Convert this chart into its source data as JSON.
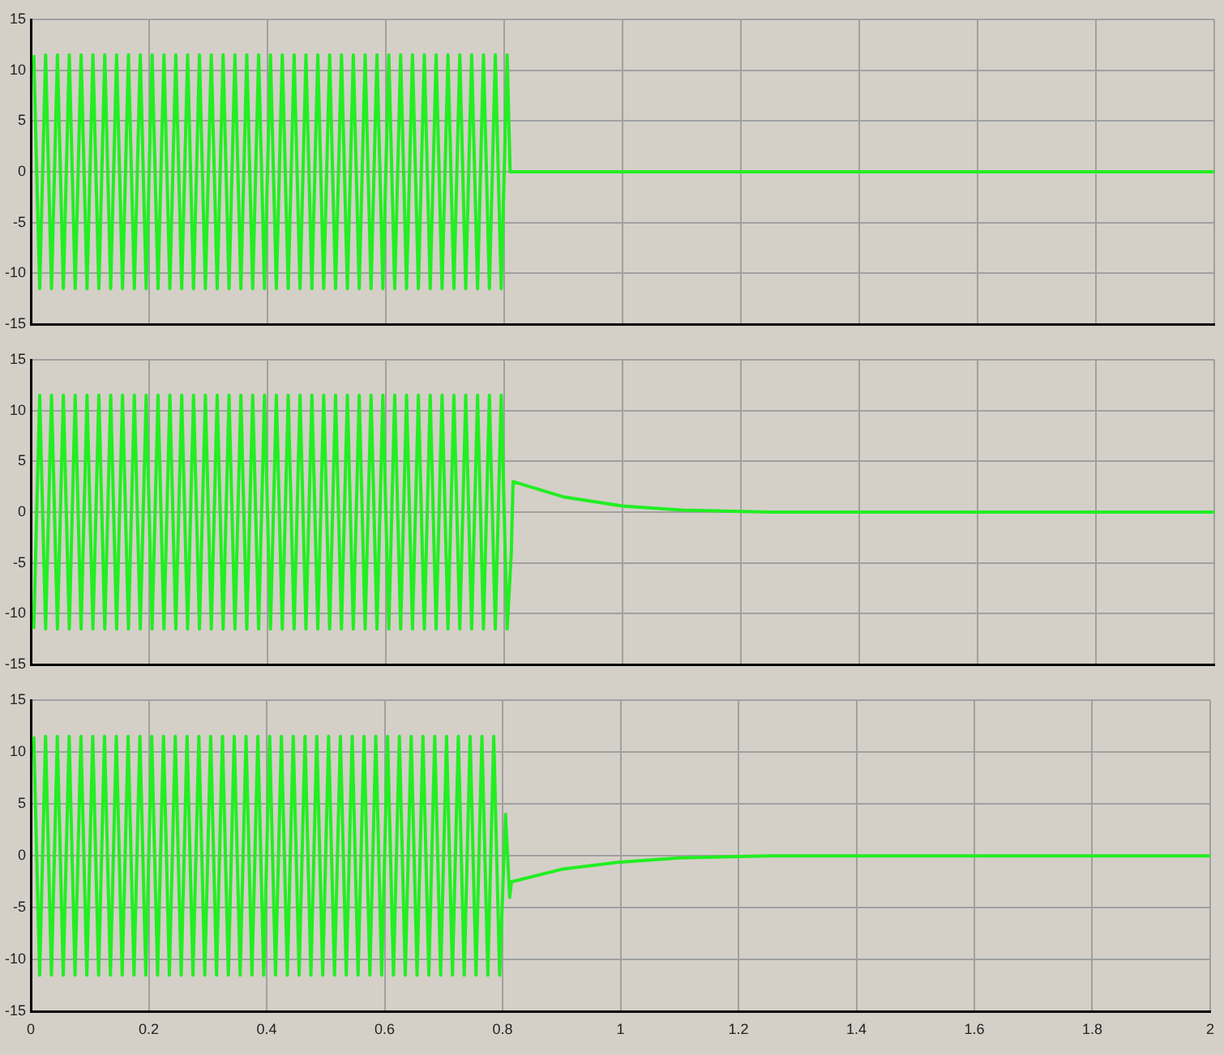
{
  "chart_data": [
    {
      "type": "line",
      "color": "#22ee22",
      "xlim": [
        0,
        2
      ],
      "xticks": [
        0,
        0.2,
        0.4,
        0.6,
        0.8,
        1,
        1.2,
        1.4,
        1.6,
        1.8,
        2
      ],
      "ylim": [
        -15,
        15
      ],
      "yticks": [
        -15,
        -10,
        -5,
        0,
        5,
        10,
        15
      ],
      "grid": true,
      "tick_labels": "y",
      "x": [
        0.005,
        0.015,
        0.025,
        0.035,
        0.045,
        0.055,
        0.065,
        0.075,
        0.085,
        0.095,
        0.105,
        0.115,
        0.125,
        0.135,
        0.145,
        0.155,
        0.165,
        0.175,
        0.185,
        0.195,
        0.205,
        0.215,
        0.225,
        0.235,
        0.245,
        0.255,
        0.265,
        0.275,
        0.285,
        0.295,
        0.305,
        0.315,
        0.325,
        0.335,
        0.345,
        0.355,
        0.365,
        0.375,
        0.385,
        0.395,
        0.405,
        0.415,
        0.425,
        0.435,
        0.445,
        0.455,
        0.465,
        0.475,
        0.485,
        0.495,
        0.505,
        0.515,
        0.525,
        0.535,
        0.545,
        0.555,
        0.565,
        0.575,
        0.585,
        0.595,
        0.605,
        0.615,
        0.625,
        0.635,
        0.645,
        0.655,
        0.665,
        0.675,
        0.685,
        0.695,
        0.705,
        0.715,
        0.725,
        0.735,
        0.745,
        0.755,
        0.765,
        0.775,
        0.785,
        0.795,
        0.805,
        0.81,
        2
      ],
      "values": [
        11.5,
        -11.5,
        11.5,
        -11.5,
        11.5,
        -11.5,
        11.5,
        -11.5,
        11.5,
        -11.5,
        11.5,
        -11.5,
        11.5,
        -11.5,
        11.5,
        -11.5,
        11.5,
        -11.5,
        11.5,
        -11.5,
        11.5,
        -11.5,
        11.5,
        -11.5,
        11.5,
        -11.5,
        11.5,
        -11.5,
        11.5,
        -11.5,
        11.5,
        -11.5,
        11.5,
        -11.5,
        11.5,
        -11.5,
        11.5,
        -11.5,
        11.5,
        -11.5,
        11.5,
        -11.5,
        11.5,
        -11.5,
        11.5,
        -11.5,
        11.5,
        -11.5,
        11.5,
        -11.5,
        11.5,
        -11.5,
        11.5,
        -11.5,
        11.5,
        -11.5,
        11.5,
        -11.5,
        11.5,
        -11.5,
        11.5,
        -11.5,
        11.5,
        -11.5,
        11.5,
        -11.5,
        11.5,
        -11.5,
        11.5,
        -11.5,
        11.5,
        -11.5,
        11.5,
        -11.5,
        11.5,
        -11.5,
        11.5,
        -11.5,
        11.5,
        -11.5,
        11.5,
        0,
        0
      ]
    },
    {
      "type": "line",
      "color": "#22ee22",
      "xlim": [
        0,
        2
      ],
      "xticks": [
        0,
        0.2,
        0.4,
        0.6,
        0.8,
        1,
        1.2,
        1.4,
        1.6,
        1.8,
        2
      ],
      "ylim": [
        -15,
        15
      ],
      "yticks": [
        -15,
        -10,
        -5,
        0,
        5,
        10,
        15
      ],
      "grid": true,
      "tick_labels": "y",
      "x": [
        0.005,
        0.015,
        0.025,
        0.035,
        0.045,
        0.055,
        0.065,
        0.075,
        0.085,
        0.095,
        0.105,
        0.115,
        0.125,
        0.135,
        0.145,
        0.155,
        0.165,
        0.175,
        0.185,
        0.195,
        0.205,
        0.215,
        0.225,
        0.235,
        0.245,
        0.255,
        0.265,
        0.275,
        0.285,
        0.295,
        0.305,
        0.315,
        0.325,
        0.335,
        0.345,
        0.355,
        0.365,
        0.375,
        0.385,
        0.395,
        0.405,
        0.415,
        0.425,
        0.435,
        0.445,
        0.455,
        0.465,
        0.475,
        0.485,
        0.495,
        0.505,
        0.515,
        0.525,
        0.535,
        0.545,
        0.555,
        0.565,
        0.575,
        0.585,
        0.595,
        0.605,
        0.615,
        0.625,
        0.635,
        0.645,
        0.655,
        0.665,
        0.675,
        0.685,
        0.695,
        0.705,
        0.715,
        0.725,
        0.735,
        0.745,
        0.755,
        0.765,
        0.775,
        0.785,
        0.795,
        0.805,
        0.812,
        0.815,
        0.9,
        1,
        1.1,
        1.25,
        2
      ],
      "values": [
        -11.5,
        11.5,
        -11.5,
        11.5,
        -11.5,
        11.5,
        -11.5,
        11.5,
        -11.5,
        11.5,
        -11.5,
        11.5,
        -11.5,
        11.5,
        -11.5,
        11.5,
        -11.5,
        11.5,
        -11.5,
        11.5,
        -11.5,
        11.5,
        -11.5,
        11.5,
        -11.5,
        11.5,
        -11.5,
        11.5,
        -11.5,
        11.5,
        -11.5,
        11.5,
        -11.5,
        11.5,
        -11.5,
        11.5,
        -11.5,
        11.5,
        -11.5,
        11.5,
        -11.5,
        11.5,
        -11.5,
        11.5,
        -11.5,
        11.5,
        -11.5,
        11.5,
        -11.5,
        11.5,
        -11.5,
        11.5,
        -11.5,
        11.5,
        -11.5,
        11.5,
        -11.5,
        11.5,
        -11.5,
        11.5,
        -11.5,
        11.5,
        -11.5,
        11.5,
        -11.5,
        11.5,
        -11.5,
        11.5,
        -11.5,
        11.5,
        -11.5,
        11.5,
        -11.5,
        11.5,
        -11.5,
        11.5,
        -11.5,
        11.5,
        -11.5,
        11.5,
        -11.5,
        -4,
        3,
        1.5,
        0.6,
        0.2,
        0,
        0
      ]
    },
    {
      "type": "line",
      "color": "#22ee22",
      "xlim": [
        0,
        2
      ],
      "xticks": [
        0,
        0.2,
        0.4,
        0.6,
        0.8,
        1,
        1.2,
        1.4,
        1.6,
        1.8,
        2
      ],
      "ylim": [
        -15,
        15
      ],
      "yticks": [
        -15,
        -10,
        -5,
        0,
        5,
        10,
        15
      ],
      "grid": true,
      "x": [
        0.005,
        0.015,
        0.025,
        0.035,
        0.045,
        0.055,
        0.065,
        0.075,
        0.085,
        0.095,
        0.105,
        0.115,
        0.125,
        0.135,
        0.145,
        0.155,
        0.165,
        0.175,
        0.185,
        0.195,
        0.205,
        0.215,
        0.225,
        0.235,
        0.245,
        0.255,
        0.265,
        0.275,
        0.285,
        0.295,
        0.305,
        0.315,
        0.325,
        0.335,
        0.345,
        0.355,
        0.365,
        0.375,
        0.385,
        0.395,
        0.405,
        0.415,
        0.425,
        0.435,
        0.445,
        0.455,
        0.465,
        0.475,
        0.485,
        0.495,
        0.505,
        0.515,
        0.525,
        0.535,
        0.545,
        0.555,
        0.565,
        0.575,
        0.585,
        0.595,
        0.605,
        0.615,
        0.625,
        0.635,
        0.645,
        0.655,
        0.665,
        0.675,
        0.685,
        0.695,
        0.705,
        0.715,
        0.725,
        0.735,
        0.745,
        0.755,
        0.765,
        0.775,
        0.785,
        0.795,
        0.805,
        0.812,
        0.815,
        0.9,
        1,
        1.1,
        1.25,
        2
      ],
      "values": [
        11.5,
        -11.5,
        11.5,
        -11.5,
        11.5,
        -11.5,
        11.5,
        -11.5,
        11.5,
        -11.5,
        11.5,
        -11.5,
        11.5,
        -11.5,
        11.5,
        -11.5,
        11.5,
        -11.5,
        11.5,
        -11.5,
        11.5,
        -11.5,
        11.5,
        -11.5,
        11.5,
        -11.5,
        11.5,
        -11.5,
        11.5,
        -11.5,
        11.5,
        -11.5,
        11.5,
        -11.5,
        11.5,
        -11.5,
        11.5,
        -11.5,
        11.5,
        -11.5,
        11.5,
        -11.5,
        11.5,
        -11.5,
        11.5,
        -11.5,
        11.5,
        -11.5,
        11.5,
        -11.5,
        11.5,
        -11.5,
        11.5,
        -11.5,
        11.5,
        -11.5,
        11.5,
        -11.5,
        11.5,
        -11.5,
        11.5,
        -11.5,
        11.5,
        -11.5,
        11.5,
        -11.5,
        11.5,
        -11.5,
        11.5,
        -11.5,
        11.5,
        -11.5,
        11.5,
        -11.5,
        11.5,
        -11.5,
        11.5,
        -11.5,
        11.5,
        -11.5,
        4,
        -4,
        -2.5,
        -1.3,
        -0.6,
        -0.2,
        0,
        0
      ]
    }
  ]
}
